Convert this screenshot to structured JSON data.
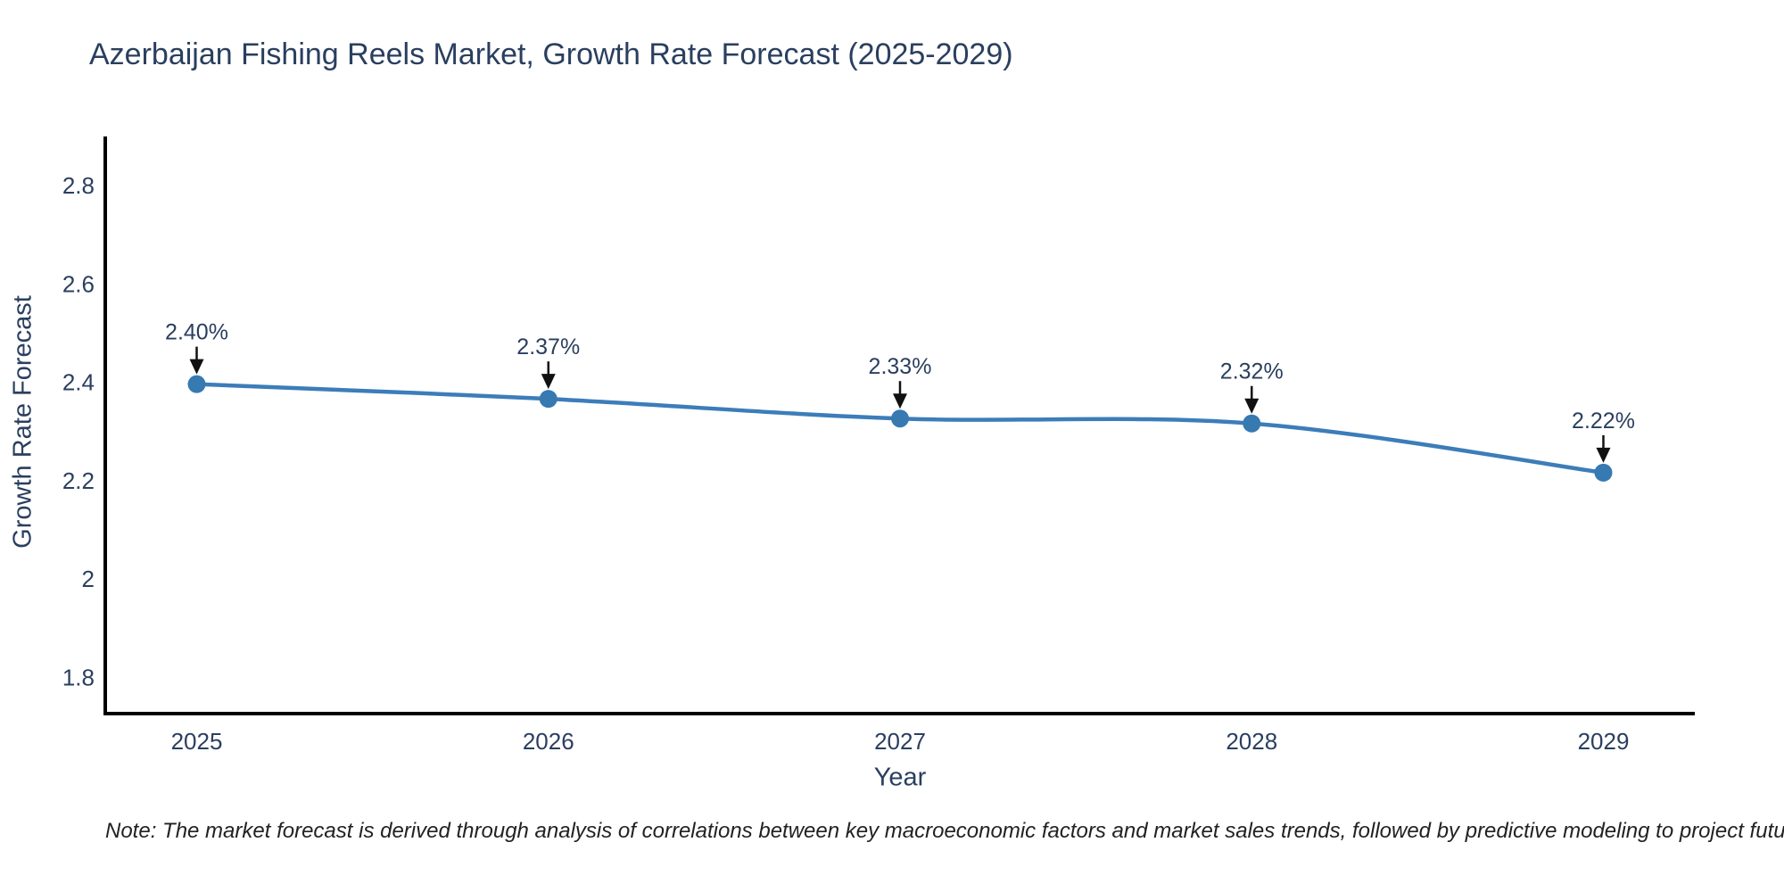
{
  "title": "Azerbaijan Fishing Reels Market, Growth Rate Forecast (2025-2029)",
  "note": "Note: The market forecast is derived through analysis of correlations between key macroeconomic factors and market sales trends, followed by predictive modeling to project future sales",
  "chart_data": {
    "type": "line",
    "title": "Azerbaijan Fishing Reels Market, Growth Rate Forecast (2025-2029)",
    "xlabel": "Year",
    "ylabel": "Growth Rate Forecast",
    "x": [
      2025,
      2026,
      2027,
      2028,
      2029
    ],
    "categories": [
      "2025",
      "2026",
      "2027",
      "2028",
      "2029"
    ],
    "values": [
      2.4,
      2.37,
      2.33,
      2.32,
      2.22
    ],
    "point_labels": [
      "2.40%",
      "2.37%",
      "2.33%",
      "2.32%",
      "2.22%"
    ],
    "xlim": [
      2024.74,
      2029.26
    ],
    "ylim": [
      1.73,
      2.9
    ],
    "yticks": {
      "values": [
        1.8,
        2.0,
        2.2,
        2.4,
        2.6,
        2.8
      ],
      "labels": [
        "1.8",
        "2",
        "2.2",
        "2.4",
        "2.6",
        "2.8"
      ]
    },
    "grid": false,
    "legend": false,
    "line_shape": "spline",
    "marker": "circle",
    "annotation_style": "value label above point with downward black arrow",
    "colors": {
      "line": "#3c7db9",
      "marker": "#3779b1",
      "text": "#2a3f5f",
      "axis": "#000000",
      "arrow": "#111111",
      "note_text": "#222222",
      "background": "#ffffff"
    }
  }
}
